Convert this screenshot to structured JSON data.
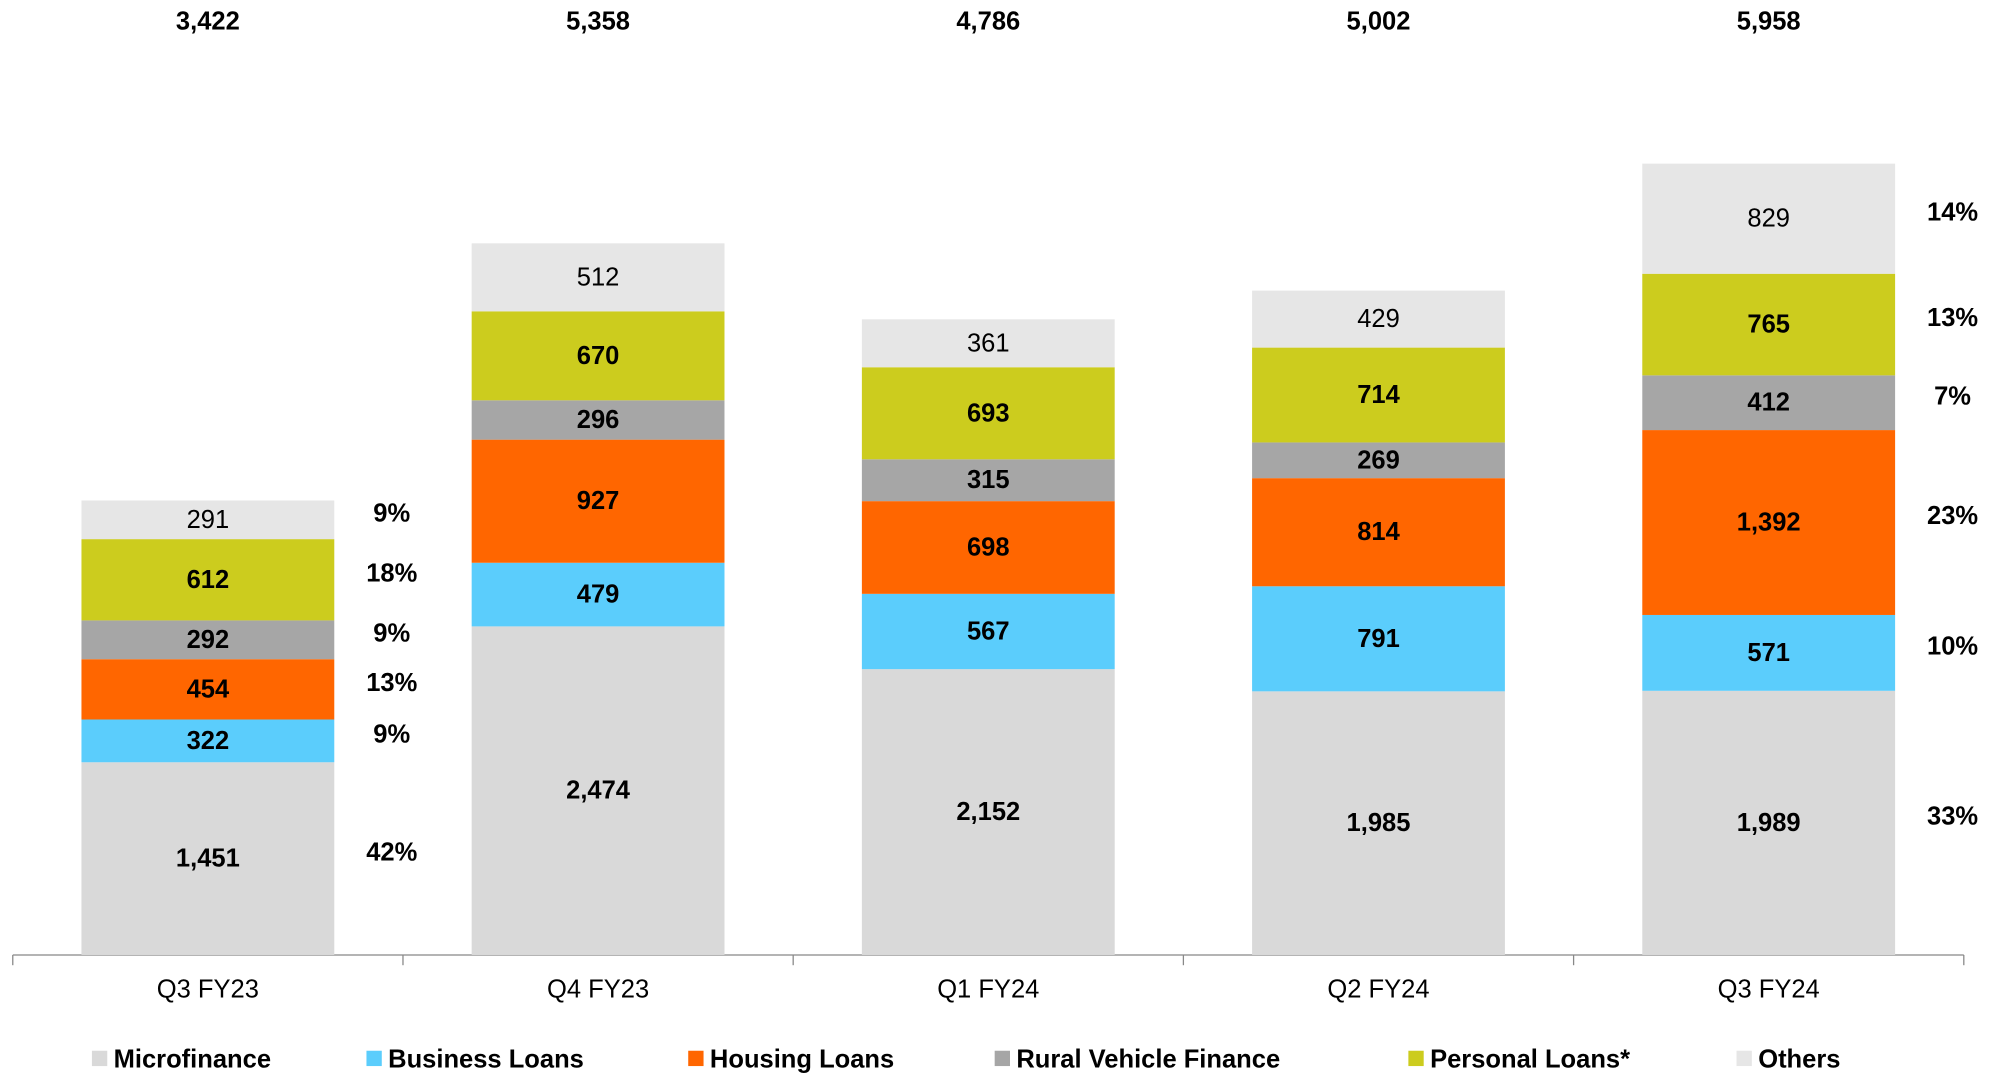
{
  "chart_data": {
    "type": "stacked-bar",
    "categories": [
      "Q3 FY23",
      "Q4 FY23",
      "Q1 FY24",
      "Q2 FY24",
      "Q3 FY24"
    ],
    "series": [
      {
        "name": "Microfinance",
        "color": "#d9d9d9",
        "values": [
          1451,
          2474,
          2152,
          1985,
          1989
        ],
        "value_labels": [
          "1,451",
          "2,474",
          "2,152",
          "1,985",
          "1,989"
        ],
        "share_labels": [
          "42%",
          null,
          null,
          null,
          "33%"
        ]
      },
      {
        "name": "Business Loans",
        "color": "#5bcdfc",
        "values": [
          322,
          479,
          567,
          791,
          571
        ],
        "share_labels": [
          "9%",
          null,
          null,
          null,
          "10%"
        ]
      },
      {
        "name": "Housing Loans",
        "color": "#ff6600",
        "values": [
          454,
          927,
          698,
          814,
          1392
        ],
        "value_labels": [
          "454",
          "927",
          "698",
          "814",
          "1,392"
        ],
        "share_labels": [
          "13%",
          null,
          null,
          null,
          "23%"
        ]
      },
      {
        "name": "Rural Vehicle Finance",
        "color": "#a6a6a6",
        "values": [
          292,
          296,
          315,
          269,
          412
        ],
        "share_labels": [
          "9%",
          null,
          null,
          null,
          "7%"
        ]
      },
      {
        "name": "Personal Loans*",
        "color": "#cccc1e",
        "values": [
          612,
          670,
          693,
          714,
          765
        ],
        "share_labels": [
          "18%",
          null,
          null,
          null,
          "13%"
        ]
      },
      {
        "name": "Others",
        "color": "#e6e6e6",
        "values": [
          291,
          512,
          361,
          429,
          829
        ],
        "share_labels": [
          "9%",
          null,
          null,
          null,
          "14%"
        ]
      }
    ],
    "totals": [
      3422,
      5358,
      4786,
      5002,
      5958
    ],
    "total_labels": [
      "3,422",
      "5,358",
      "4,786",
      "5,002",
      "5,958"
    ],
    "ylim": [
      0,
      7190
    ]
  }
}
